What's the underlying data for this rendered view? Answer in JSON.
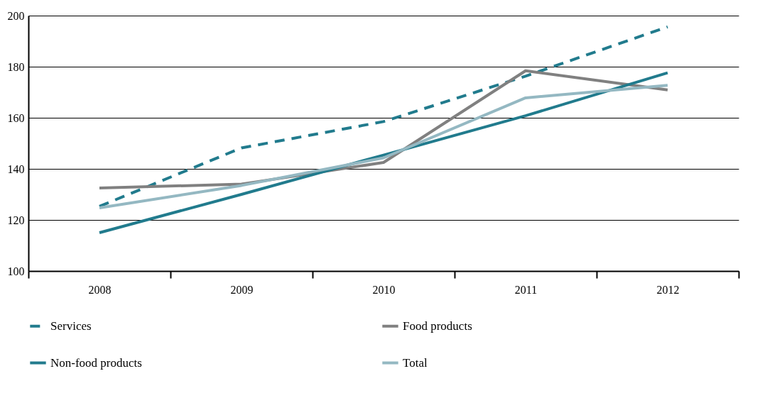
{
  "chart_data": {
    "type": "line",
    "categories": [
      "2008",
      "2009",
      "2010",
      "2011",
      "2012"
    ],
    "series": [
      {
        "name": "Services",
        "color": "#217b8d",
        "line_style": "dashed",
        "values": [
          125.3,
          148.2,
          158.5,
          176.3,
          195.6
        ]
      },
      {
        "name": "Food products",
        "color": "#808080",
        "values": [
          132.5,
          134,
          142.5,
          178.4,
          170.9
        ]
      },
      {
        "name": "Non-food products",
        "color": "#217b8d",
        "values": [
          115,
          130,
          145.4,
          160.8,
          177.6
        ]
      },
      {
        "name": "Total",
        "color": "#94b8c2",
        "values": [
          124.7,
          133.5,
          144.3,
          167.8,
          172.7
        ]
      }
    ],
    "ylim": [
      100,
      200
    ],
    "yticks": [
      100,
      120,
      140,
      160,
      180,
      200
    ],
    "grid": "y",
    "legend": "bottom",
    "line_style": "solid",
    "marker": "none"
  }
}
